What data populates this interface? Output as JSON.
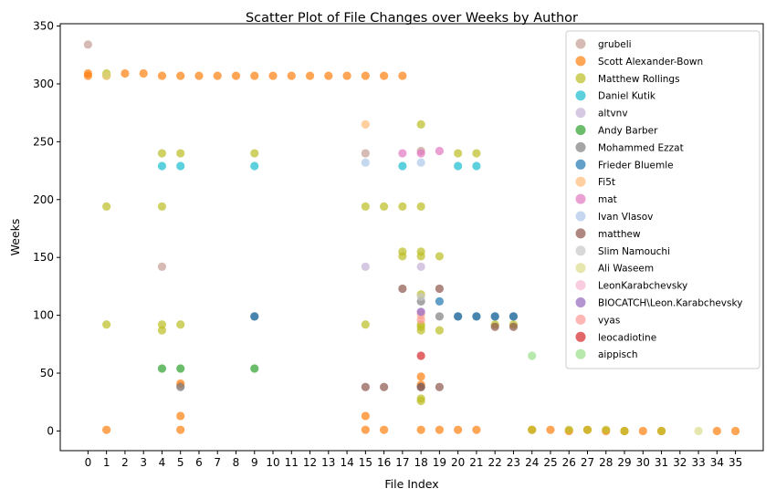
{
  "chart_data": {
    "type": "scatter",
    "title": "Scatter Plot of File Changes over Weeks by Author",
    "xlabel": "File Index",
    "ylabel": "Weeks",
    "xlim": [
      -1.5,
      36.5
    ],
    "ylim": [
      -17,
      352
    ],
    "xticks": [
      0,
      1,
      2,
      3,
      4,
      5,
      6,
      7,
      8,
      9,
      10,
      11,
      12,
      13,
      14,
      15,
      16,
      17,
      18,
      19,
      20,
      21,
      22,
      23,
      24,
      25,
      26,
      27,
      28,
      29,
      30,
      31,
      32,
      33,
      34,
      35
    ],
    "yticks": [
      0,
      50,
      100,
      150,
      200,
      250,
      300,
      350
    ],
    "grid": false,
    "legend_position": "top-right",
    "series": [
      {
        "name": "grubeli",
        "color": "#c49c94",
        "points": [
          [
            0,
            334
          ],
          [
            4,
            142
          ],
          [
            5,
            39
          ],
          [
            15,
            240
          ],
          [
            18,
            242
          ]
        ]
      },
      {
        "name": "Scott Alexander-Bown",
        "color": "#ff7f0e",
        "points": [
          [
            0,
            307
          ],
          [
            0,
            309
          ],
          [
            1,
            307
          ],
          [
            2,
            309
          ],
          [
            3,
            309
          ],
          [
            4,
            307
          ],
          [
            5,
            307
          ],
          [
            6,
            307
          ],
          [
            7,
            307
          ],
          [
            8,
            307
          ],
          [
            9,
            307
          ],
          [
            10,
            307
          ],
          [
            11,
            307
          ],
          [
            12,
            307
          ],
          [
            13,
            307
          ],
          [
            14,
            307
          ],
          [
            15,
            307
          ],
          [
            16,
            307
          ],
          [
            17,
            307
          ],
          [
            1,
            1
          ],
          [
            5,
            1
          ],
          [
            5,
            13
          ],
          [
            5,
            41
          ],
          [
            15,
            1
          ],
          [
            15,
            13
          ],
          [
            16,
            1
          ],
          [
            18,
            1
          ],
          [
            18,
            47
          ],
          [
            18,
            40
          ],
          [
            19,
            1
          ],
          [
            20,
            1
          ],
          [
            21,
            1
          ],
          [
            24,
            1
          ],
          [
            25,
            1
          ],
          [
            26,
            0
          ],
          [
            27,
            1
          ],
          [
            28,
            0
          ],
          [
            29,
            0
          ],
          [
            30,
            0
          ],
          [
            31,
            0
          ],
          [
            34,
            0
          ],
          [
            35,
            0
          ]
        ]
      },
      {
        "name": "Matthew Rollings",
        "color": "#bcbd22",
        "points": [
          [
            1,
            309
          ],
          [
            1,
            194
          ],
          [
            1,
            92
          ],
          [
            4,
            240
          ],
          [
            4,
            194
          ],
          [
            4,
            92
          ],
          [
            4,
            87
          ],
          [
            5,
            240
          ],
          [
            5,
            92
          ],
          [
            9,
            240
          ],
          [
            15,
            194
          ],
          [
            15,
            92
          ],
          [
            16,
            194
          ],
          [
            17,
            194
          ],
          [
            17,
            155
          ],
          [
            17,
            151
          ],
          [
            18,
            265
          ],
          [
            18,
            194
          ],
          [
            18,
            155
          ],
          [
            18,
            151
          ],
          [
            18,
            118
          ],
          [
            18,
            92
          ],
          [
            18,
            90
          ],
          [
            18,
            87
          ],
          [
            18,
            28
          ],
          [
            18,
            26
          ],
          [
            19,
            151
          ],
          [
            19,
            87
          ],
          [
            20,
            240
          ],
          [
            21,
            240
          ],
          [
            22,
            92
          ],
          [
            23,
            92
          ],
          [
            24,
            1
          ],
          [
            26,
            1
          ],
          [
            27,
            1
          ],
          [
            28,
            1
          ],
          [
            29,
            0
          ],
          [
            31,
            0
          ]
        ]
      },
      {
        "name": "Daniel Kutik",
        "color": "#17becf",
        "points": [
          [
            4,
            229
          ],
          [
            5,
            229
          ],
          [
            9,
            229
          ],
          [
            17,
            229
          ],
          [
            20,
            229
          ],
          [
            21,
            229
          ]
        ]
      },
      {
        "name": "altvnv",
        "color": "#c5b0d5",
        "points": [
          [
            15,
            142
          ],
          [
            18,
            142
          ]
        ]
      },
      {
        "name": "Andy Barber",
        "color": "#2ca02c",
        "points": [
          [
            4,
            54
          ],
          [
            5,
            54
          ],
          [
            9,
            54
          ]
        ]
      },
      {
        "name": "Mohammed Ezzat",
        "color": "#7f7f7f",
        "points": [
          [
            5,
            38
          ],
          [
            9,
            99
          ],
          [
            18,
            112
          ],
          [
            18,
            38
          ],
          [
            19,
            99
          ],
          [
            20,
            99
          ],
          [
            21,
            99
          ],
          [
            22,
            99
          ],
          [
            23,
            99
          ]
        ]
      },
      {
        "name": "Frieder Bluemle",
        "color": "#1f77b4",
        "points": [
          [
            9,
            99
          ],
          [
            19,
            112
          ],
          [
            20,
            99
          ],
          [
            21,
            99
          ],
          [
            22,
            99
          ],
          [
            23,
            99
          ]
        ]
      },
      {
        "name": "Fi5t",
        "color": "#ffbb78",
        "points": [
          [
            15,
            265
          ],
          [
            18,
            100
          ]
        ]
      },
      {
        "name": "mat",
        "color": "#e377c2",
        "points": [
          [
            17,
            240
          ],
          [
            18,
            240
          ],
          [
            19,
            242
          ]
        ]
      },
      {
        "name": "Ivan Vlasov",
        "color": "#aec7e8",
        "points": [
          [
            15,
            232
          ],
          [
            18,
            232
          ]
        ]
      },
      {
        "name": "matthew",
        "color": "#8c564b",
        "points": [
          [
            15,
            38
          ],
          [
            16,
            38
          ],
          [
            17,
            123
          ],
          [
            18,
            38
          ],
          [
            19,
            123
          ],
          [
            19,
            38
          ],
          [
            22,
            90
          ],
          [
            23,
            90
          ]
        ]
      },
      {
        "name": "Slim Namouchi",
        "color": "#c7c7c7",
        "points": [
          [
            18,
            116
          ]
        ]
      },
      {
        "name": "Ali Waseem",
        "color": "#dbdb8d",
        "points": [
          [
            1,
            307
          ],
          [
            33,
            0
          ]
        ]
      },
      {
        "name": "LeonKarabchevsky",
        "color": "#f7b6d2",
        "points": [
          [
            18,
            102
          ]
        ]
      },
      {
        "name": "BIOCATCH\\Leon.Karabchevsky",
        "color": "#9467bd",
        "points": [
          [
            18,
            103
          ]
        ]
      },
      {
        "name": "vyas",
        "color": "#ff9896",
        "points": [
          [
            18,
            96
          ]
        ]
      },
      {
        "name": "leocadiotine",
        "color": "#d62728",
        "points": [
          [
            18,
            65
          ]
        ]
      },
      {
        "name": "aippisch",
        "color": "#98df8a",
        "points": [
          [
            24,
            65
          ]
        ]
      }
    ]
  }
}
